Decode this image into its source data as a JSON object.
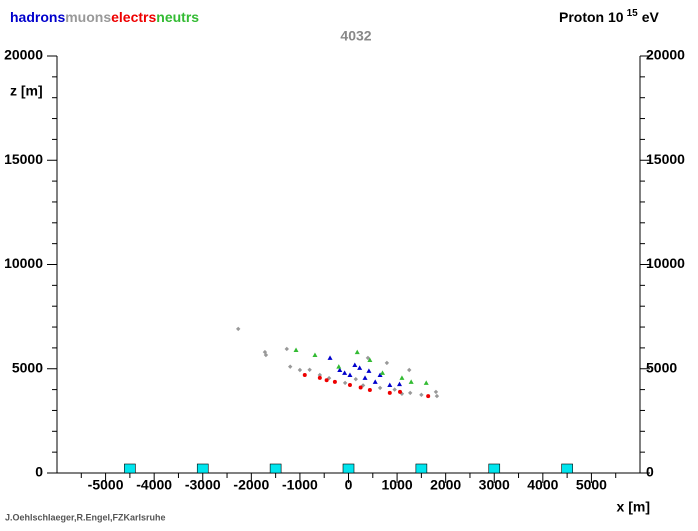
{
  "chart_data": {
    "type": "scatter",
    "subtitle": "4032",
    "title": {
      "base": "Proton 10",
      "exponent": "15",
      "unit": "eV"
    },
    "y_label": "z [m]",
    "x_label": "x [m]",
    "footer": "J.Oehlschlaeger,R.Engel,FZKarlsruhe",
    "xlim": [
      -6000,
      6000
    ],
    "ylim": [
      0,
      20000
    ],
    "xticks": [
      -5000,
      -4000,
      -3000,
      -2000,
      -1000,
      0,
      1000,
      2000,
      3000,
      4000,
      5000
    ],
    "yticks": [
      0,
      5000,
      10000,
      15000,
      20000
    ],
    "xminorticks": [
      -5500,
      -4500,
      -3500,
      -2500,
      -1500,
      -500,
      500,
      1500,
      2500,
      3500,
      4500,
      5500
    ],
    "yminorticks": [
      1000,
      2000,
      3000,
      4000,
      6000,
      7000,
      8000,
      9000,
      11000,
      12000,
      13000,
      14000,
      16000,
      17000,
      18000,
      19000
    ],
    "detectors": {
      "x": [
        -4500,
        -3000,
        -1500,
        0,
        1500,
        3000,
        4500
      ],
      "color": "#00e5ee"
    },
    "series": [
      {
        "name": "hadrons",
        "color": "#0000cc",
        "marker": "triangle",
        "x": [
          -380,
          -180,
          30,
          340,
          550,
          850,
          130,
          230,
          -80,
          650,
          1050,
          420
        ],
        "y": [
          5520,
          4940,
          4700,
          4560,
          4370,
          4220,
          5180,
          5040,
          4800,
          4700,
          4260,
          4900
        ]
      },
      {
        "name": "muons",
        "color": "#999999",
        "marker": "diamond",
        "x": [
          -2270,
          -1720,
          -1700,
          -1270,
          -1000,
          -590,
          -70,
          650,
          1270,
          1820,
          1800,
          400,
          790,
          1250,
          -1200,
          -800,
          150,
          950,
          1500,
          1100,
          -400,
          300
        ],
        "y": [
          6910,
          5800,
          5660,
          5950,
          4940,
          4700,
          4320,
          4080,
          3840,
          3690,
          3890,
          5520,
          5280,
          4940,
          5100,
          4950,
          4500,
          4000,
          3750,
          3800,
          4550,
          4200
        ]
      },
      {
        "name": "electrs",
        "color": "#ee0000",
        "marker": "circle",
        "x": [
          -900,
          -590,
          -280,
          30,
          440,
          850,
          1060,
          1640,
          -450,
          250
        ],
        "y": [
          4700,
          4560,
          4370,
          4220,
          3980,
          3840,
          3890,
          3690,
          4450,
          4100
        ]
      },
      {
        "name": "neutrs",
        "color": "#33bb33",
        "marker": "triangle",
        "x": [
          -1080,
          -690,
          180,
          440,
          1100,
          1290,
          1600,
          -200,
          700
        ],
        "y": [
          5900,
          5660,
          5800,
          5420,
          4560,
          4370,
          4320,
          5100,
          4800
        ]
      }
    ]
  }
}
